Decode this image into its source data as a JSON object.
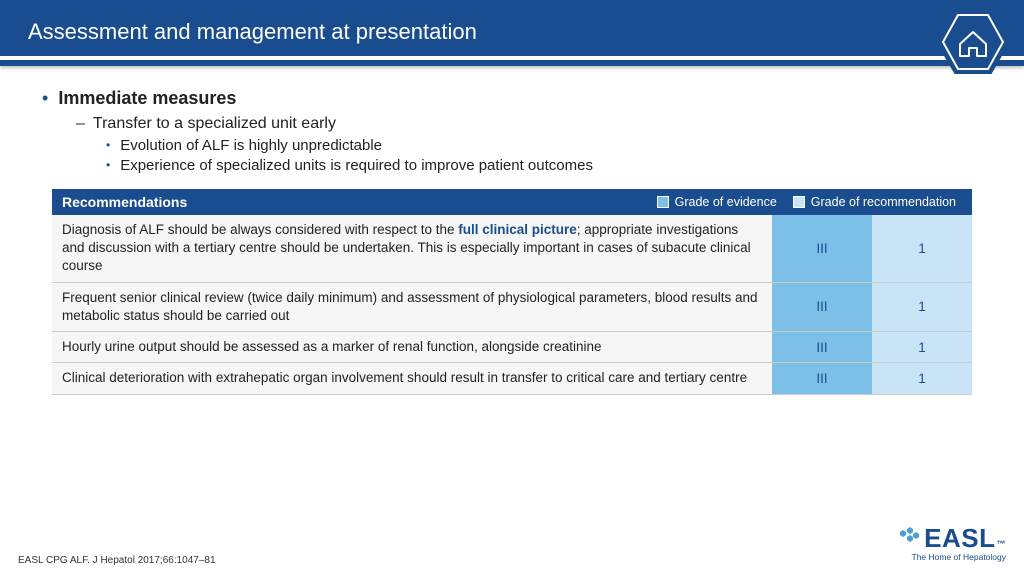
{
  "header": {
    "title": "Assessment and management at presentation"
  },
  "bullets": {
    "l1": "Immediate measures",
    "l2": "Transfer to a specialized unit early",
    "l3a": "Evolution of ALF is highly unpredictable",
    "l3b": "Experience of specialized units is required to improve patient outcomes"
  },
  "table": {
    "header_label": "Recommendations",
    "legend_evidence": "Grade of evidence",
    "legend_recommendation": "Grade of recommendation",
    "colors": {
      "evidence_swatch": "#7cc0e8",
      "rec_swatch": "#c8e4f6"
    },
    "rows": [
      {
        "text_pre": "Diagnosis of ALF should be always considered with respect to the ",
        "highlight": "full clinical picture",
        "text_post": "; appropriate investigations and discussion with a tertiary centre should be undertaken. This is especially important in cases of subacute clinical course",
        "evidence": "III",
        "rec": "1"
      },
      {
        "text_pre": "Frequent senior clinical review (twice daily minimum) and assessment of physiological parameters, blood results and metabolic status should be carried out",
        "highlight": "",
        "text_post": "",
        "evidence": "III",
        "rec": "1"
      },
      {
        "text_pre": "Hourly urine output should be assessed as a marker of renal function, alongside creatinine",
        "highlight": "",
        "text_post": "",
        "evidence": "III",
        "rec": "1"
      },
      {
        "text_pre": "Clinical deterioration with extrahepatic organ involvement should result in transfer to critical care and tertiary centre",
        "highlight": "",
        "text_post": "",
        "evidence": "III",
        "rec": "1"
      }
    ]
  },
  "footer": {
    "citation": "EASL CPG ALF. J Hepatol 2017;66:1047–81"
  },
  "logo": {
    "brand": "EASL",
    "tag": "The Home of Hepatology"
  }
}
